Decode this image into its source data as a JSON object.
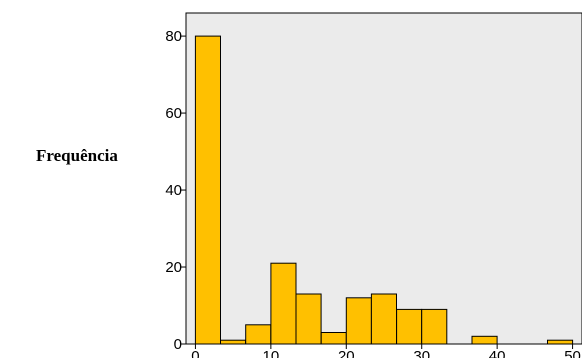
{
  "chart_data": {
    "type": "bar",
    "title": "",
    "xlabel": "",
    "ylabel": "Frequência",
    "xlim": [
      -1.25,
      51.25
    ],
    "ylim": [
      0,
      86
    ],
    "bin_width": 3.33,
    "x_ticks": [
      0,
      10,
      20,
      30,
      40,
      50
    ],
    "y_ticks": [
      0,
      20,
      40,
      60,
      80
    ],
    "bins_start": [
      0,
      3.33,
      6.67,
      10,
      13.33,
      16.67,
      20,
      23.33,
      26.67,
      30,
      33.33,
      36.67,
      40,
      43.33,
      46.67
    ],
    "values": [
      80,
      1,
      5,
      21,
      13,
      3,
      12,
      13,
      9,
      9,
      0,
      2,
      0,
      0,
      1
    ],
    "bar_color": "#FFC000",
    "plot_background": "#EBEBEB",
    "grid": false,
    "legend": "none"
  }
}
